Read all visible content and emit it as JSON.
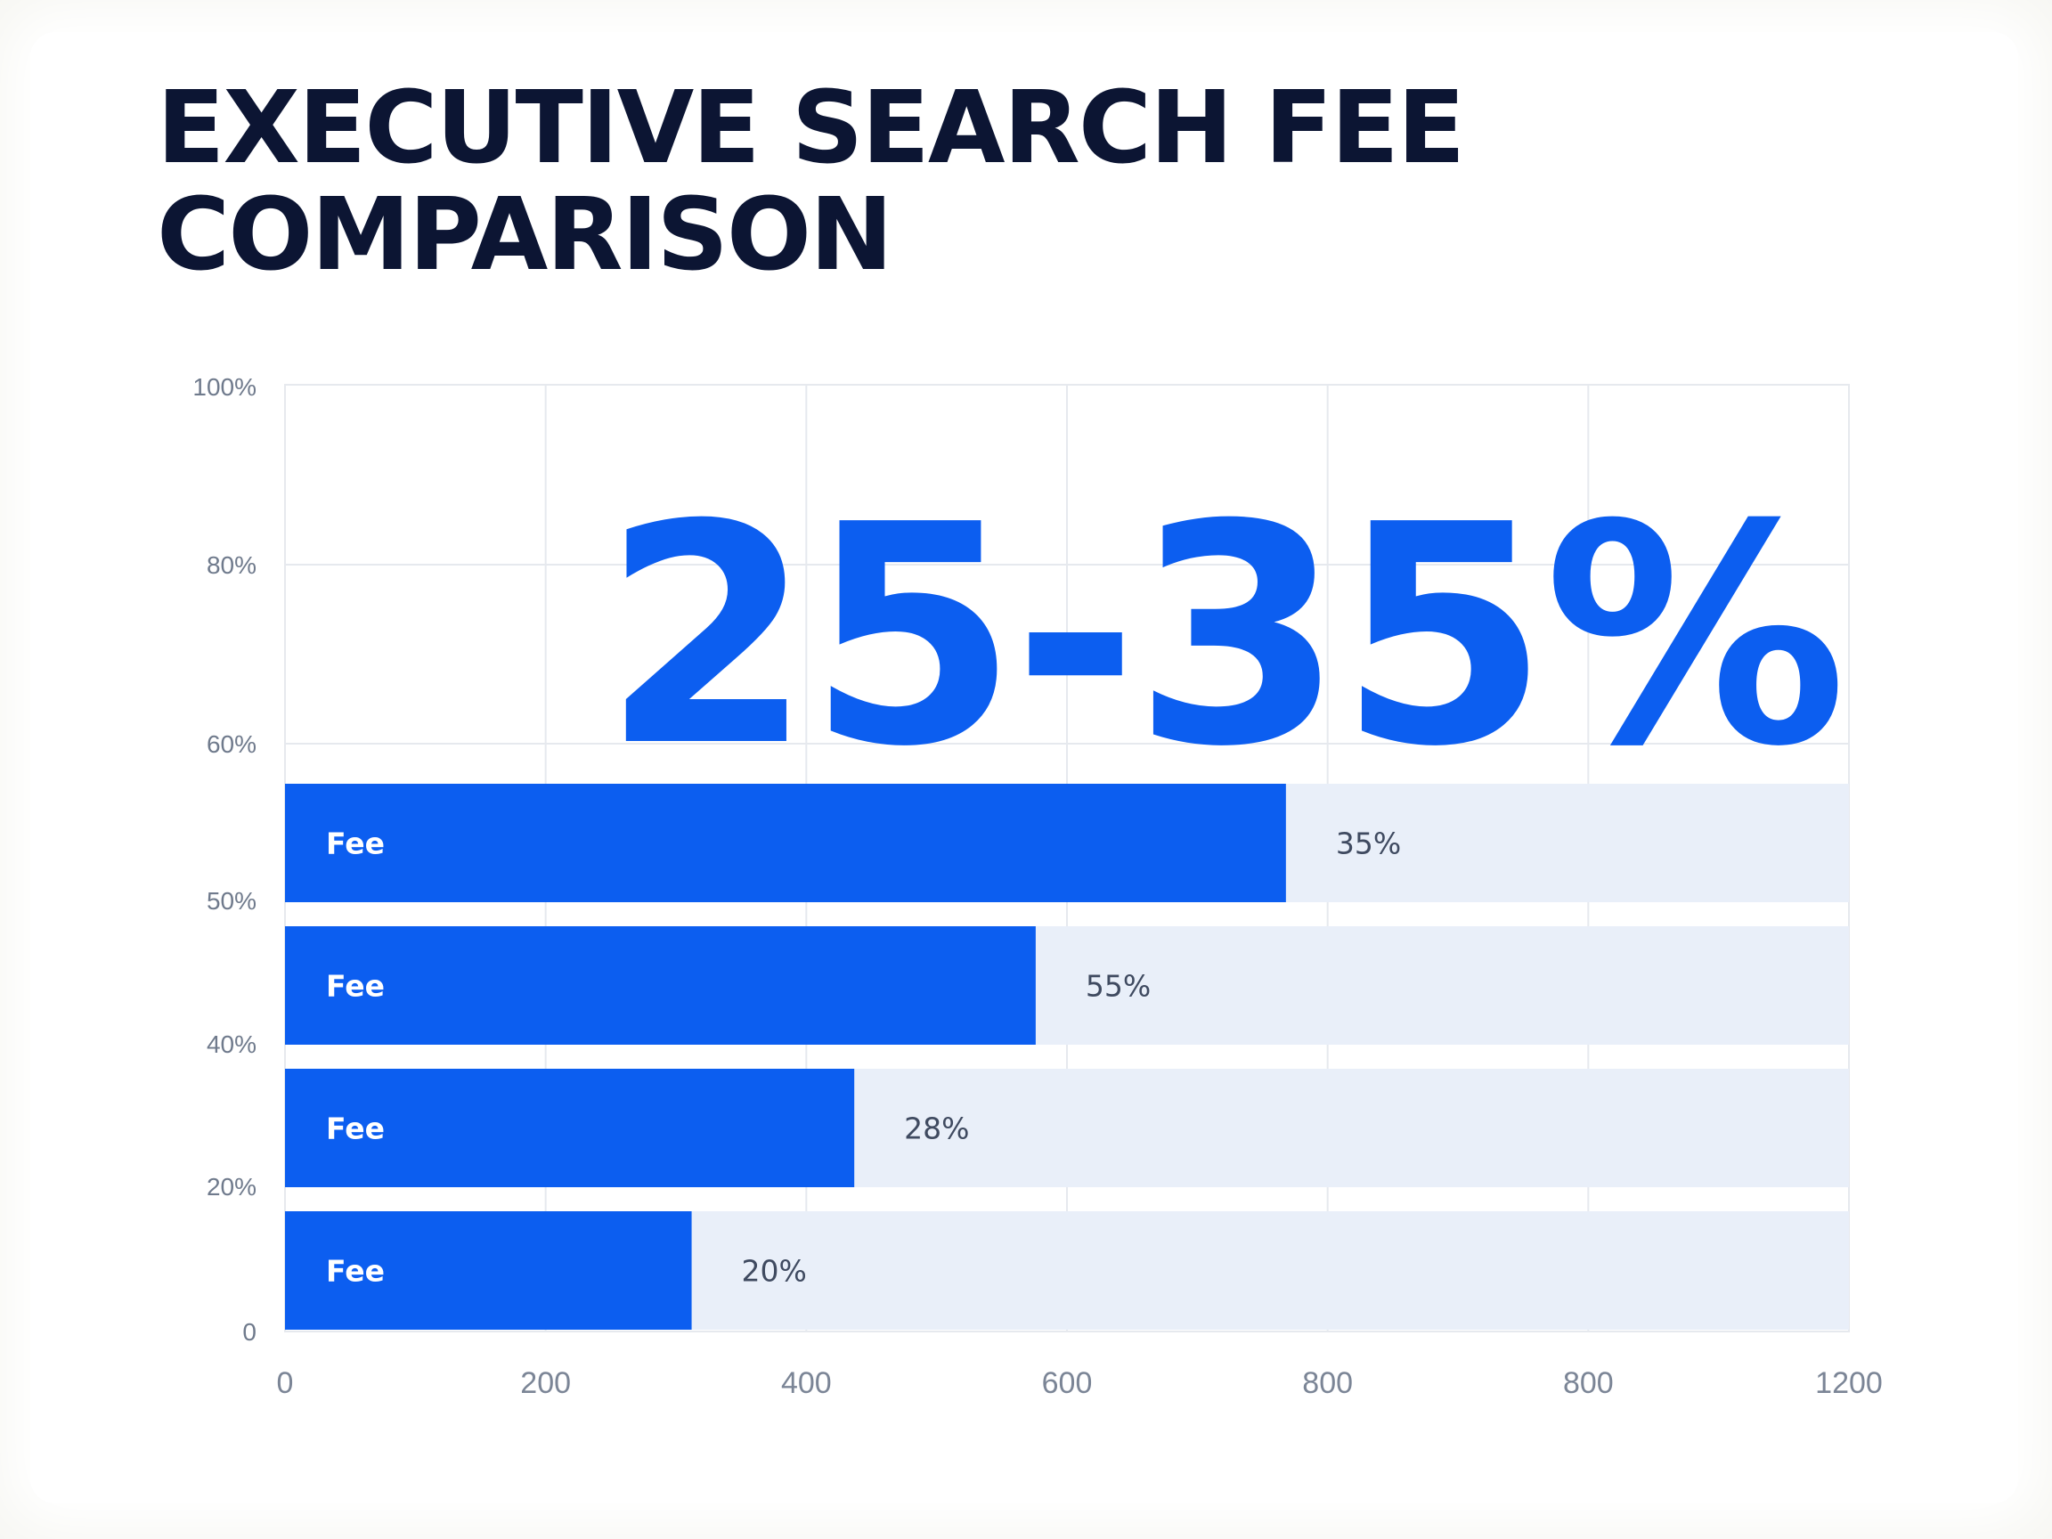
{
  "title_lines": [
    "EXECUTIVE SEARCH FEE",
    "COMPARISON"
  ],
  "headline": "25-35%",
  "colors": {
    "bar": "#0c5ef0",
    "track": "#e9eff9",
    "title": "#0c1533",
    "grid": "#e6e9ee"
  },
  "chart_data": {
    "type": "bar",
    "orientation": "horizontal",
    "title": "EXECUTIVE SEARCH FEE COMPARISON",
    "categories": [
      "Fee",
      "Fee",
      "Fee",
      "Fee"
    ],
    "values": [
      800,
      600,
      455,
      325
    ],
    "value_labels": [
      "35%",
      "55%",
      "28%",
      "20%"
    ],
    "xlim": [
      0,
      1250
    ],
    "x_ticks": [
      "0",
      "200",
      "400",
      "600",
      "800",
      "800",
      "1200"
    ],
    "y_ticks": [
      "0",
      "20%",
      "40%",
      "50%",
      "60%",
      "80%",
      "100%"
    ],
    "grid": true,
    "legend": "none"
  }
}
